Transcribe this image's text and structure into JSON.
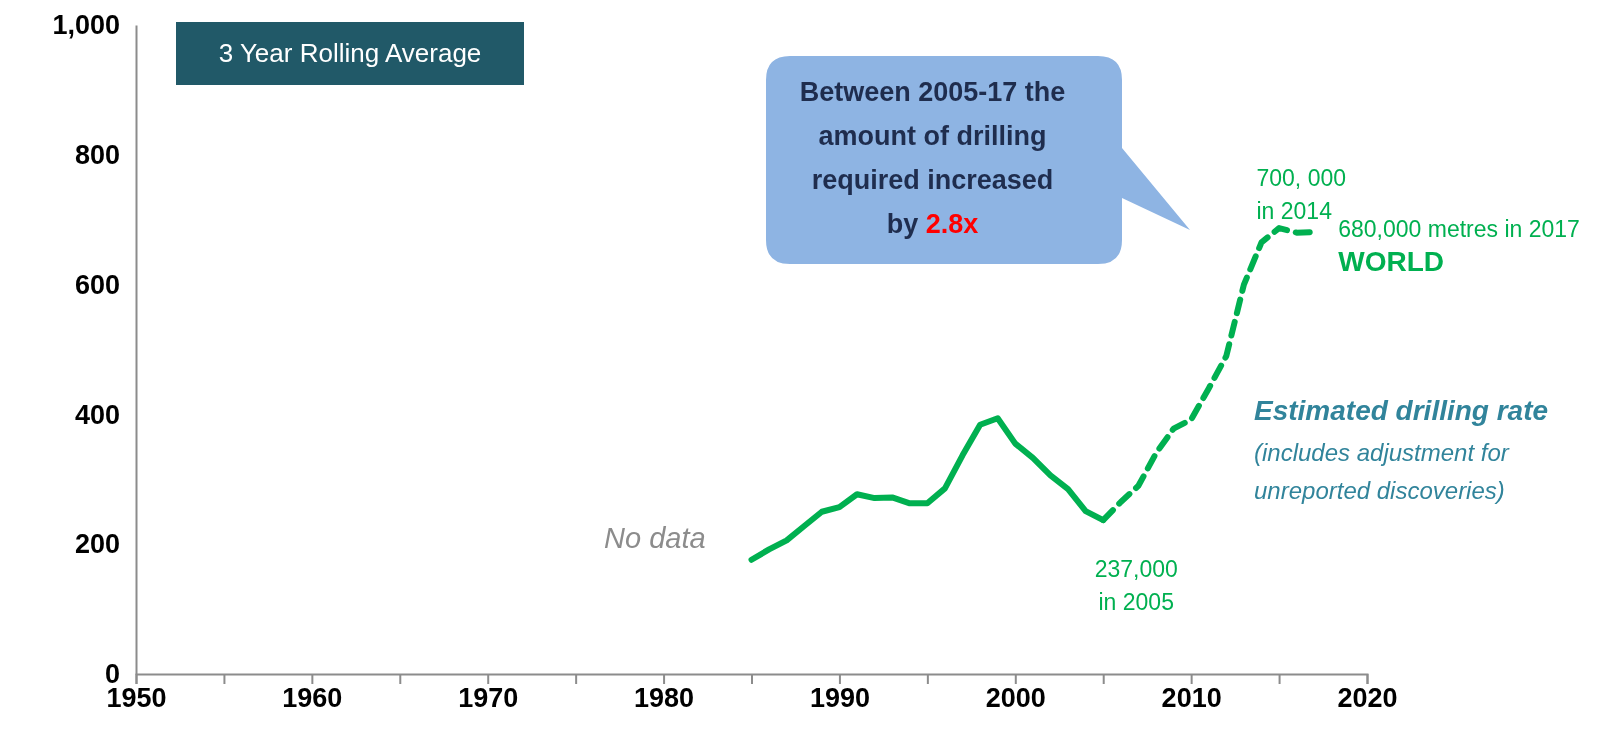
{
  "chart_data": {
    "type": "line",
    "xlim": [
      1950,
      2020
    ],
    "xticks": [
      1950,
      {
        "value": 1955,
        "label": null
      },
      1960,
      {
        "value": 1965,
        "label": null
      },
      1970,
      {
        "value": 1975,
        "label": null
      },
      1980,
      {
        "value": 1985,
        "label": null
      },
      1990,
      {
        "value": 1995,
        "label": null
      },
      2000,
      {
        "value": 2005,
        "label": null
      },
      2010,
      {
        "value": 2015,
        "label": null
      },
      2020
    ],
    "ylim": [
      0,
      1000
    ],
    "yticks": [
      0,
      200,
      400,
      600,
      800,
      {
        "value": 1000,
        "label": "1,000"
      }
    ],
    "grid": false,
    "marker": "none",
    "series": [
      {
        "color": "#00b050",
        "line_style": "solid",
        "x": [
          1985,
          1986,
          1987,
          1988,
          1989,
          1990,
          1991,
          1992,
          1993,
          1994,
          1995,
          1996,
          1997,
          1998,
          1999,
          2000,
          2001,
          2002,
          2003,
          2004,
          2005
        ],
        "values": [
          176,
          192,
          206,
          228,
          250,
          257,
          277,
          271,
          272,
          263,
          263,
          286,
          337,
          384,
          394,
          355,
          333,
          306,
          285,
          251,
          237
        ]
      },
      {
        "color": "#00b050",
        "line_style": "dashed",
        "x": [
          2005,
          2006,
          2007,
          2008,
          2009,
          2010,
          2011,
          2012,
          2013,
          2014,
          2015,
          2016,
          2017
        ],
        "values": [
          237,
          265,
          290,
          340,
          378,
          392,
          440,
          490,
          600,
          665,
          687,
          680,
          681
        ]
      }
    ],
    "annotations": [
      "3 Year Rolling Average",
      "Between 2005-17 the amount of drilling required increased by",
      "2.8x",
      {
        "text": "700, 000 in 2014",
        "x": 2014,
        "y": 665
      },
      {
        "text": "680,000 metres in 2017",
        "x": 2017,
        "y": 681
      },
      "WORLD",
      {
        "text": "237,000 in 2005",
        "x": 2005,
        "y": 237
      },
      "Estimated drilling rate",
      "(includes adjustment for unreported discoveries)",
      "No data"
    ]
  }
}
